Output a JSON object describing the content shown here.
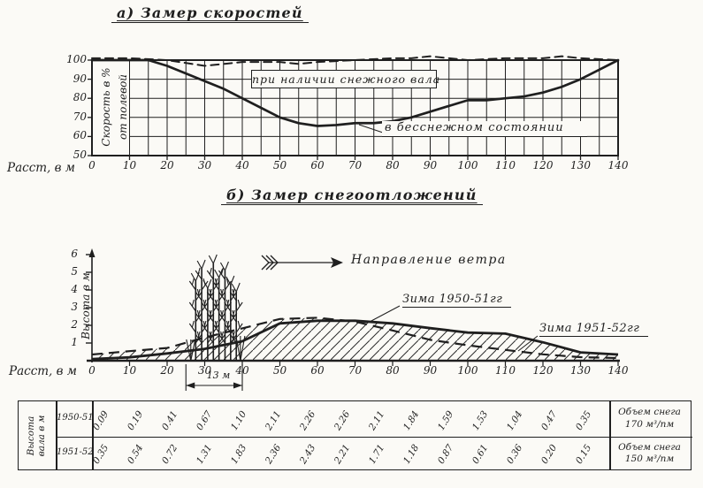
{
  "paper_color": "#fbfaf6",
  "ink_color": "#1f1f1f",
  "chart_data": [
    {
      "type": "line",
      "title": "а) Замер скоростей",
      "ylabel": "Скорость в % от полевой",
      "ylabel_lines": [
        "Скорость в %",
        "от полевой"
      ],
      "xlabel": "Расст, в м",
      "xlim": [
        0,
        140
      ],
      "ylim": [
        50,
        100
      ],
      "grid": true,
      "x_ticks": [
        "0",
        "10",
        "20",
        "30",
        "40",
        "50",
        "60",
        "70",
        "80",
        "90",
        "100",
        "110",
        "120",
        "130",
        "140"
      ],
      "y_ticks": [
        "100",
        "90",
        "80",
        "70",
        "60",
        "50"
      ],
      "series": [
        {
          "name": "при наличии снежного вала",
          "style": "dashed",
          "x": [
            0,
            10,
            20,
            30,
            35,
            40,
            50,
            55,
            60,
            70,
            80,
            85,
            90,
            95,
            100,
            110,
            120,
            125,
            130,
            140
          ],
          "y": [
            101,
            101,
            100,
            97,
            98,
            99,
            99,
            98,
            99,
            100,
            101,
            101,
            102,
            101,
            100,
            101,
            101,
            102,
            101,
            100
          ]
        },
        {
          "name": "в бесснежном состоянии",
          "style": "solid",
          "x": [
            0,
            5,
            10,
            15,
            20,
            25,
            30,
            35,
            40,
            45,
            50,
            55,
            60,
            65,
            70,
            75,
            80,
            85,
            90,
            95,
            100,
            105,
            110,
            115,
            120,
            125,
            130,
            135,
            140
          ],
          "y": [
            100,
            100,
            100,
            100,
            97,
            93,
            89,
            85,
            80,
            75,
            70,
            67,
            65.5,
            66,
            67,
            67,
            68,
            70,
            73,
            76,
            79,
            79,
            80,
            81,
            83,
            86,
            90,
            95,
            100
          ]
        }
      ]
    },
    {
      "type": "area",
      "title": "б) Замер снегоотложений",
      "ylabel": "Высота в м",
      "xlabel": "Расст, в м",
      "xlim": [
        0,
        140
      ],
      "ylim": [
        0,
        6
      ],
      "x_ticks": [
        "0",
        "10",
        "20",
        "30",
        "40",
        "50",
        "60",
        "70",
        "80",
        "90",
        "100",
        "110",
        "120",
        "130",
        "140"
      ],
      "y_ticks": [
        "6",
        "5",
        "4",
        "3",
        "2",
        "1"
      ],
      "wind_label": "Направление ветра",
      "treebelt_width_label": "13 м",
      "series": [
        {
          "name": "Зима 1950-51гг",
          "style": "solid",
          "x": [
            0,
            10,
            20,
            30,
            40,
            50,
            60,
            70,
            80,
            90,
            100,
            110,
            120,
            130,
            140
          ],
          "y": [
            0.09,
            0.19,
            0.41,
            0.67,
            1.1,
            2.11,
            2.26,
            2.26,
            2.11,
            1.84,
            1.59,
            1.53,
            1.04,
            0.47,
            0.35
          ]
        },
        {
          "name": "Зима 1951-52гг",
          "style": "dashed",
          "x": [
            0,
            10,
            20,
            30,
            40,
            50,
            60,
            70,
            80,
            90,
            100,
            110,
            120,
            130,
            140
          ],
          "y": [
            0.35,
            0.54,
            0.72,
            1.31,
            1.83,
            2.36,
            2.43,
            2.21,
            1.71,
            1.18,
            0.87,
            0.61,
            0.36,
            0.2,
            0.15
          ]
        }
      ]
    },
    {
      "type": "table",
      "corner_header": "Высота вала в м",
      "corner_header_lines": [
        "Высота",
        "вала в м"
      ],
      "rows": [
        {
          "label": "1950-51",
          "values": [
            "0.09",
            "0.19",
            "0.41",
            "0.67",
            "1.10",
            "2.11",
            "2.26",
            "2.26",
            "2.11",
            "1.84",
            "1.59",
            "1.53",
            "1.04",
            "0.47",
            "0.35"
          ],
          "note_lines": [
            "Объем снега",
            "170 м³/пм"
          ]
        },
        {
          "label": "1951-52",
          "values": [
            "0.35",
            "0.54",
            "0.72",
            "1.31",
            "1.83",
            "2.36",
            "2.43",
            "2.21",
            "1.71",
            "1.18",
            "0.87",
            "0.61",
            "0.36",
            "0.20",
            "0.15"
          ],
          "note_lines": [
            "Объем снега",
            "150 м³/пм"
          ]
        }
      ]
    }
  ]
}
